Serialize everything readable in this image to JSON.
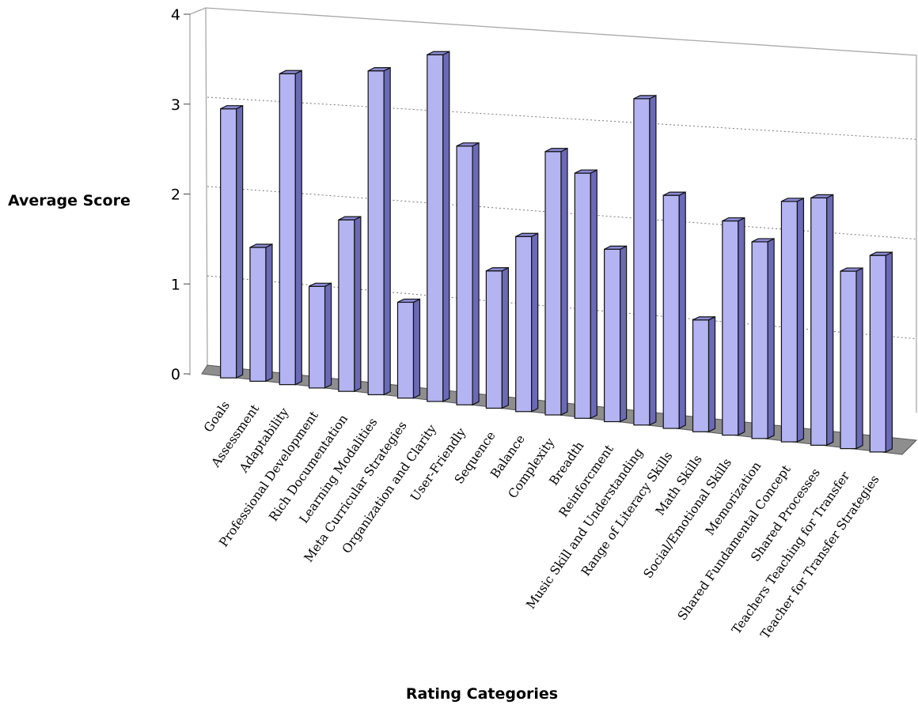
{
  "chart_data": {
    "type": "bar",
    "title": "",
    "xlabel": "Rating Categories",
    "ylabel": "Average Score",
    "ylim": [
      0,
      4
    ],
    "yticks": [
      0,
      1,
      2,
      3,
      4
    ],
    "grid": true,
    "bar_color": "#b3b3f0",
    "categories": [
      "Goals",
      "Assessment",
      "Adaptability",
      "Professional Development",
      "Rich Documentation",
      "Learning Modalities",
      "Meta Curricular Strategies",
      "Organization and Clarity",
      "User-Friendly",
      "Sequence",
      "Balance",
      "Complexity",
      "Breadth",
      "Reinforcment",
      "Music Skill and Understanding",
      "Range of Literacy Skills",
      "Math Skills",
      "Social/Emotional Skills",
      "Memorization",
      "Shared Fundamental Concept",
      "Shared Processes",
      "Teachers Teaching for Transfer",
      "Teacher for Transfer Strategies"
    ],
    "values": [
      3.0,
      1.5,
      3.5,
      1.15,
      1.95,
      3.7,
      1.1,
      4.0,
      3.0,
      1.6,
      2.05,
      3.1,
      2.9,
      2.05,
      3.9,
      2.8,
      1.35,
      2.6,
      2.4,
      2.95,
      3.05,
      2.2,
      2.45
    ]
  }
}
